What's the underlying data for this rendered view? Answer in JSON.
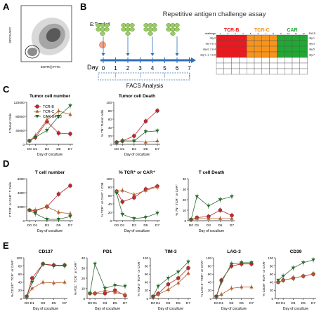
{
  "panels": {
    "A": "A",
    "B": "B",
    "C": "C",
    "D": "D",
    "E": "E"
  },
  "panel_a": {
    "ylabel": "GPC3-APC",
    "xlabel": "EGFR(t)-FITC"
  },
  "panel_b": {
    "ratio": "E:T = 1:4",
    "title": "Repetitive antigen challenge assay",
    "day_label": "Day",
    "days": [
      "0",
      "1",
      "2",
      "3",
      "4",
      "5",
      "6",
      "7"
    ],
    "facs": "FACS Analysis",
    "grid_headers": {
      "tcrb": "TCR-B",
      "tcrc": "TCR-C",
      "car": "CAR"
    },
    "grid_left_header": "challenge",
    "grid_rows": [
      "day 0",
      "day 0 & 1",
      "day 0, 2 & 4",
      "day 0, 1, 4 & 6"
    ],
    "grid_right_header": "FACS",
    "grid_right_rows": [
      "day 1",
      "day 3",
      "day 5",
      "day 7"
    ],
    "grid_col_numbers": [
      "1",
      "2",
      "3",
      "4",
      "5",
      "6",
      "7",
      "8",
      "9",
      "10",
      "11",
      "12"
    ],
    "colors": {
      "tcrb": "#e8191f",
      "tcrc": "#f7941d",
      "car": "#21a834"
    }
  },
  "series_names": [
    "TCR-B",
    "TCR-C",
    "CAR-GPC3"
  ],
  "series_colors": [
    "#c0272d",
    "#b35c2a",
    "#2e6b30"
  ],
  "xlabel": "Day of coculture",
  "days": [
    "D0",
    "D1",
    "D3",
    "D5",
    "D7"
  ],
  "chart_data": [
    {
      "panel": "C",
      "type": "line",
      "title": "Tumor cell number",
      "ylabel": "# Tumor Cells",
      "ylim": [
        0,
        120000
      ],
      "yticks": [
        "0",
        "40000",
        "80000",
        "120000"
      ],
      "x": [
        "D0",
        "D1",
        "D3",
        "D5",
        "D7"
      ],
      "series": [
        {
          "name": "TCR-B",
          "values": [
            10000,
            20000,
            65000,
            32000,
            30000
          ]
        },
        {
          "name": "TCR-C",
          "values": [
            10000,
            25000,
            70000,
            95000,
            85000
          ]
        },
        {
          "name": "CAR-GPC3",
          "values": [
            10000,
            20000,
            40000,
            80000,
            110000
          ]
        }
      ]
    },
    {
      "panel": "C",
      "type": "line",
      "title": "Tumor cell Death",
      "ylabel": "% 7N⁺ Tumor cells",
      "ylim": [
        0,
        100
      ],
      "yticks": [
        "0",
        "20",
        "40",
        "60",
        "80",
        "100"
      ],
      "x": [
        "D0",
        "D1",
        "D3",
        "D5",
        "D7"
      ],
      "series": [
        {
          "name": "TCR-B",
          "values": [
            5,
            8,
            20,
            55,
            80
          ]
        },
        {
          "name": "TCR-C",
          "values": [
            5,
            8,
            8,
            5,
            8
          ]
        },
        {
          "name": "CAR-GPC3",
          "values": [
            5,
            8,
            8,
            30,
            32
          ]
        }
      ]
    },
    {
      "panel": "D",
      "type": "line",
      "title": "T cell number",
      "ylabel": "# TCR⁺ or CAR⁺ T Cells",
      "ylim": [
        0,
        6000
      ],
      "yticks": [
        "0",
        "2000",
        "4000",
        "6000"
      ],
      "x": [
        "D0",
        "D1",
        "D3",
        "D5",
        "D7"
      ],
      "series": [
        {
          "name": "TCR-B",
          "values": [
            1500,
            1400,
            2000,
            3800,
            5000
          ]
        },
        {
          "name": "TCR-C",
          "values": [
            1500,
            1500,
            2000,
            1200,
            1000
          ]
        },
        {
          "name": "CAR-GPC3",
          "values": [
            1500,
            1000,
            200,
            200,
            600
          ]
        }
      ]
    },
    {
      "panel": "D",
      "type": "line",
      "title": "% TCR⁺ or CAR⁺",
      "ylabel": "% TCR⁺ or CAR⁺ / CD8",
      "ylim": [
        0,
        100
      ],
      "yticks": [
        "0",
        "20",
        "40",
        "60",
        "80",
        "100"
      ],
      "x": [
        "D0",
        "D1",
        "D3",
        "D5",
        "D7"
      ],
      "series": [
        {
          "name": "TCR-B",
          "values": [
            70,
            45,
            55,
            75,
            82
          ]
        },
        {
          "name": "TCR-C",
          "values": [
            70,
            72,
            62,
            72,
            80
          ]
        },
        {
          "name": "CAR-GPC3",
          "values": [
            65,
            15,
            5,
            8,
            18
          ]
        }
      ]
    },
    {
      "panel": "D",
      "type": "line",
      "title": "T cell Death",
      "ylabel": "% 7N⁺ TCR⁺ or CAR⁺",
      "ylim": [
        0,
        40
      ],
      "yticks": [
        "0",
        "10",
        "20",
        "30",
        "40"
      ],
      "x": [
        "D0",
        "D1",
        "D3",
        "D5",
        "D7"
      ],
      "series": [
        {
          "name": "TCR-B",
          "values": [
            1,
            3,
            4,
            10,
            5
          ]
        },
        {
          "name": "TCR-C",
          "values": [
            1,
            2,
            2,
            2,
            2
          ]
        },
        {
          "name": "CAR-GPC3",
          "values": [
            1,
            23,
            14,
            20,
            23
          ]
        }
      ]
    },
    {
      "panel": "E",
      "type": "line",
      "title": "CD137",
      "ylabel": "% CD137⁺ TCR⁺ or CAR⁺",
      "ylim": [
        0,
        100
      ],
      "yticks": [
        "0",
        "20",
        "40",
        "60",
        "80",
        "100"
      ],
      "x": [
        "D0",
        "D1",
        "D3",
        "D5",
        "D7"
      ],
      "series": [
        {
          "name": "TCR-B",
          "values": [
            5,
            50,
            85,
            82,
            82
          ]
        },
        {
          "name": "TCR-C",
          "values": [
            5,
            25,
            40,
            38,
            40
          ]
        },
        {
          "name": "CAR-GPC3",
          "values": [
            5,
            40,
            85,
            80,
            80
          ]
        }
      ]
    },
    {
      "panel": "E",
      "type": "line",
      "title": "PD1",
      "ylabel": "% PD1⁺ TCR⁺ or CAR⁺",
      "ylim": [
        0,
        40
      ],
      "yticks": [
        "0",
        "10",
        "20",
        "30",
        "40"
      ],
      "x": [
        "D0",
        "D1",
        "D3",
        "D5",
        "D7"
      ],
      "series": [
        {
          "name": "TCR-B",
          "values": [
            5,
            5,
            5,
            8,
            3
          ]
        },
        {
          "name": "TCR-C",
          "values": [
            5,
            5,
            8,
            6,
            4
          ]
        },
        {
          "name": "CAR-GPC3",
          "values": [
            5,
            34,
            10,
            13,
            12
          ]
        }
      ]
    },
    {
      "panel": "E",
      "type": "line",
      "title": "TIM-3",
      "ylabel": "% TIM-3⁺ TCR⁺ or CAR⁺",
      "ylim": [
        0,
        100
      ],
      "yticks": [
        "0",
        "20",
        "40",
        "60",
        "80",
        "100"
      ],
      "x": [
        "D0",
        "D1",
        "D3",
        "D5",
        "D7"
      ],
      "series": [
        {
          "name": "TCR-B",
          "values": [
            5,
            12,
            35,
            50,
            75
          ]
        },
        {
          "name": "TCR-C",
          "values": [
            5,
            10,
            22,
            38,
            62
          ]
        },
        {
          "name": "CAR-GPC3",
          "values": [
            5,
            30,
            50,
            65,
            90
          ]
        }
      ]
    },
    {
      "panel": "E",
      "type": "line",
      "title": "LAG-3",
      "ylabel": "% LAG-3⁺ TCR⁺ or CAR⁺",
      "ylim": [
        0,
        100
      ],
      "yticks": [
        "0",
        "20",
        "40",
        "60",
        "80",
        "100"
      ],
      "x": [
        "D0",
        "D1",
        "D3",
        "D5",
        "D7"
      ],
      "series": [
        {
          "name": "TCR-B",
          "values": [
            5,
            45,
            80,
            85,
            85
          ]
        },
        {
          "name": "TCR-C",
          "values": [
            5,
            10,
            25,
            28,
            28
          ]
        },
        {
          "name": "CAR-GPC3",
          "values": [
            5,
            40,
            85,
            88,
            88
          ]
        }
      ]
    },
    {
      "panel": "E",
      "type": "line",
      "title": "CD39",
      "ylabel": "% CD39⁺ TCR⁺ or CAR⁺",
      "ylim": [
        0,
        100
      ],
      "yticks": [
        "0",
        "20",
        "40",
        "60",
        "80",
        "100"
      ],
      "x": [
        "D0",
        "D1",
        "D3",
        "D5",
        "D7"
      ],
      "series": [
        {
          "name": "TCR-B",
          "values": [
            40,
            45,
            50,
            55,
            60
          ]
        },
        {
          "name": "TCR-C",
          "values": [
            40,
            45,
            50,
            55,
            60
          ]
        },
        {
          "name": "CAR-GPC3",
          "values": [
            45,
            55,
            75,
            88,
            95
          ]
        }
      ]
    }
  ]
}
